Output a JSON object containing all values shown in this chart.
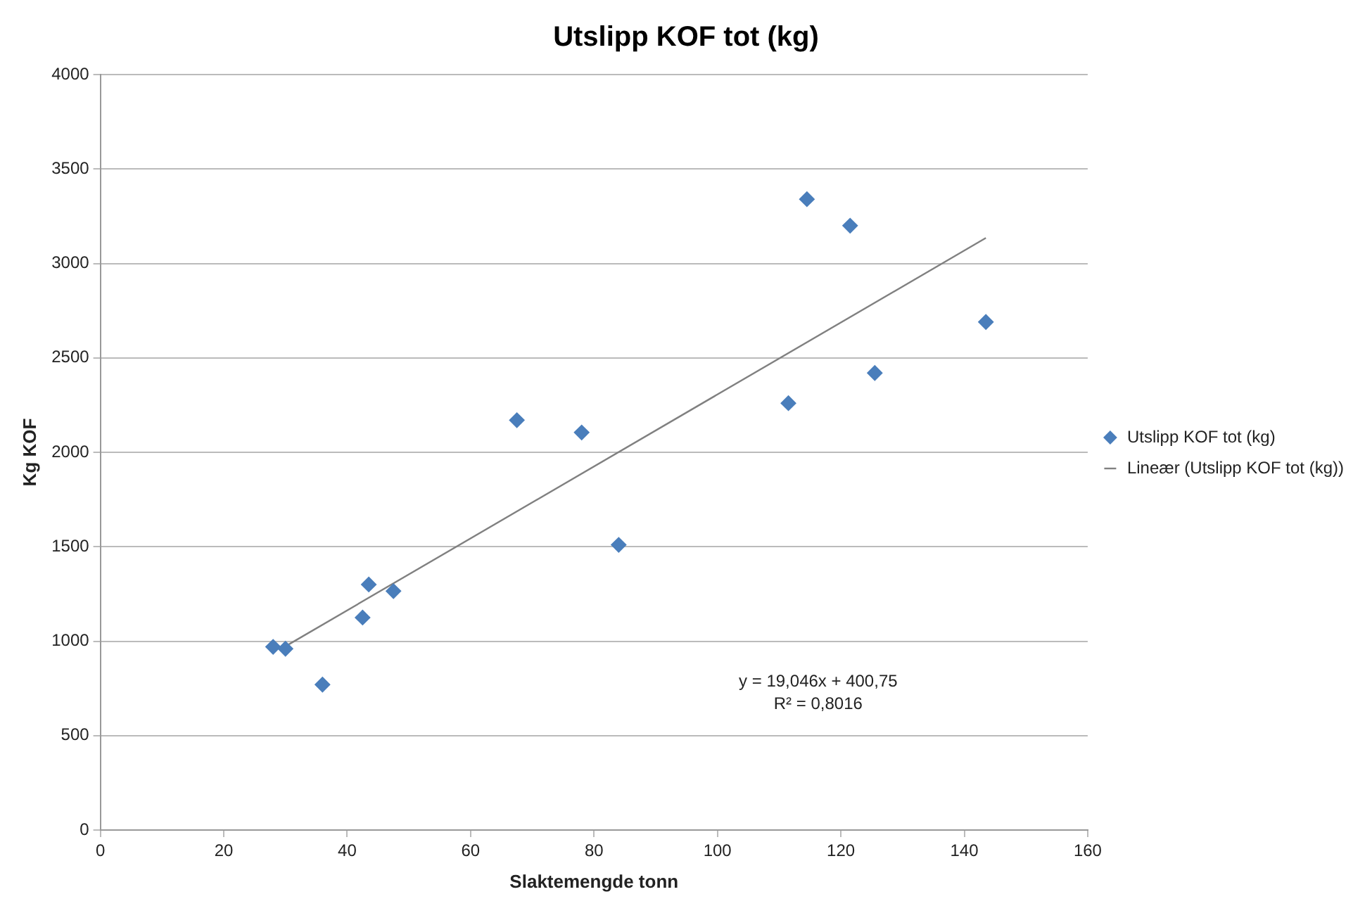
{
  "chart_data": {
    "type": "scatter",
    "title": "Utslipp KOF tot (kg)",
    "xlabel": "Slaktemengde tonn",
    "ylabel": "Kg KOF",
    "series": [
      {
        "name": "Utslipp KOF tot (kg)",
        "type": "scatter",
        "color": "#4a7ebb",
        "marker": "diamond",
        "x": [
          28,
          30,
          36,
          42.5,
          43.5,
          47.5,
          67.5,
          78,
          84,
          111.5,
          114.5,
          121.5,
          125.5,
          143.5
        ],
        "values": [
          970,
          960,
          770,
          1125,
          1300,
          1265,
          2170,
          2105,
          1510,
          2260,
          3340,
          3200,
          2420,
          2690
        ]
      },
      {
        "name": "Lineær (Utslipp KOF tot (kg))",
        "type": "line",
        "color": "#808080",
        "marker": "none",
        "line_style": "solid",
        "x": [
          29.6,
          143.5
        ],
        "values": [
          965,
          3135
        ]
      }
    ],
    "xlim": [
      0,
      160
    ],
    "xticks": [
      0,
      20,
      40,
      60,
      80,
      100,
      120,
      140,
      160
    ],
    "ylim": [
      0,
      4000
    ],
    "yticks": [
      0,
      500,
      1000,
      1500,
      2000,
      2500,
      3000,
      3500,
      4000
    ],
    "grid": "y",
    "legend": "right",
    "annotations": [
      "y = 19,046x + 400,75",
      "R² = 0,8016"
    ]
  }
}
